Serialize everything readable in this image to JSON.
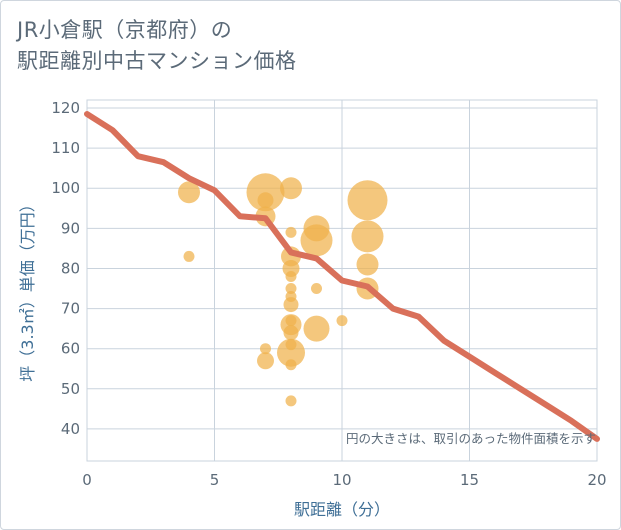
{
  "title_lines": [
    "JR小倉駅（京都府）の",
    "駅距離別中古マンション価格"
  ],
  "colors": {
    "bubble": "#f0b24b",
    "line": "#d9705a",
    "grid": "#c9d3dd",
    "text": "#5b6a78",
    "axis_title": "#3f6f96"
  },
  "chart_data": {
    "type": "scatter",
    "xlabel": "駅距離（分）",
    "ylabel": "坪（3.3㎡）単価（万円）",
    "xlim": [
      0,
      20
    ],
    "ylim": [
      32,
      122
    ],
    "xticks": [
      0,
      5,
      10,
      15,
      20
    ],
    "yticks": [
      40,
      50,
      60,
      70,
      80,
      90,
      100,
      110,
      120
    ],
    "note": "円の大きさは、取引のあった物件面積を示す",
    "bubbles": [
      {
        "x": 4,
        "y": 99,
        "size": 22
      },
      {
        "x": 4,
        "y": 83,
        "size": 11
      },
      {
        "x": 7,
        "y": 99,
        "size": 38
      },
      {
        "x": 7,
        "y": 97,
        "size": 16
      },
      {
        "x": 7,
        "y": 93,
        "size": 20
      },
      {
        "x": 7,
        "y": 60,
        "size": 11
      },
      {
        "x": 7,
        "y": 57,
        "size": 17
      },
      {
        "x": 8,
        "y": 100,
        "size": 22
      },
      {
        "x": 8,
        "y": 89,
        "size": 11
      },
      {
        "x": 8,
        "y": 83,
        "size": 20
      },
      {
        "x": 8,
        "y": 80,
        "size": 17
      },
      {
        "x": 8,
        "y": 78,
        "size": 11
      },
      {
        "x": 8,
        "y": 75,
        "size": 11
      },
      {
        "x": 8,
        "y": 73,
        "size": 11
      },
      {
        "x": 8,
        "y": 71,
        "size": 15
      },
      {
        "x": 8,
        "y": 67,
        "size": 11
      },
      {
        "x": 8,
        "y": 66,
        "size": 21
      },
      {
        "x": 8,
        "y": 64,
        "size": 15
      },
      {
        "x": 8,
        "y": 61,
        "size": 11
      },
      {
        "x": 8,
        "y": 59,
        "size": 28
      },
      {
        "x": 8,
        "y": 56,
        "size": 11
      },
      {
        "x": 8,
        "y": 47,
        "size": 11
      },
      {
        "x": 9,
        "y": 90,
        "size": 26
      },
      {
        "x": 9,
        "y": 87,
        "size": 32
      },
      {
        "x": 9,
        "y": 75,
        "size": 11
      },
      {
        "x": 9,
        "y": 65,
        "size": 26
      },
      {
        "x": 10,
        "y": 67,
        "size": 11
      },
      {
        "x": 11,
        "y": 97,
        "size": 40
      },
      {
        "x": 11,
        "y": 88,
        "size": 32
      },
      {
        "x": 11,
        "y": 81,
        "size": 22
      },
      {
        "x": 11,
        "y": 75,
        "size": 22
      }
    ],
    "line": {
      "x": [
        0,
        1,
        2,
        3,
        4,
        5,
        6,
        7,
        8,
        9,
        10,
        11,
        12,
        13,
        14,
        15,
        16,
        17,
        18,
        19,
        20
      ],
      "y": [
        118.5,
        114.5,
        108,
        106.5,
        102.5,
        99.5,
        93,
        92.5,
        84,
        82.5,
        77,
        75.5,
        70,
        68,
        62,
        58,
        54,
        50,
        46,
        42,
        37.5
      ]
    }
  }
}
